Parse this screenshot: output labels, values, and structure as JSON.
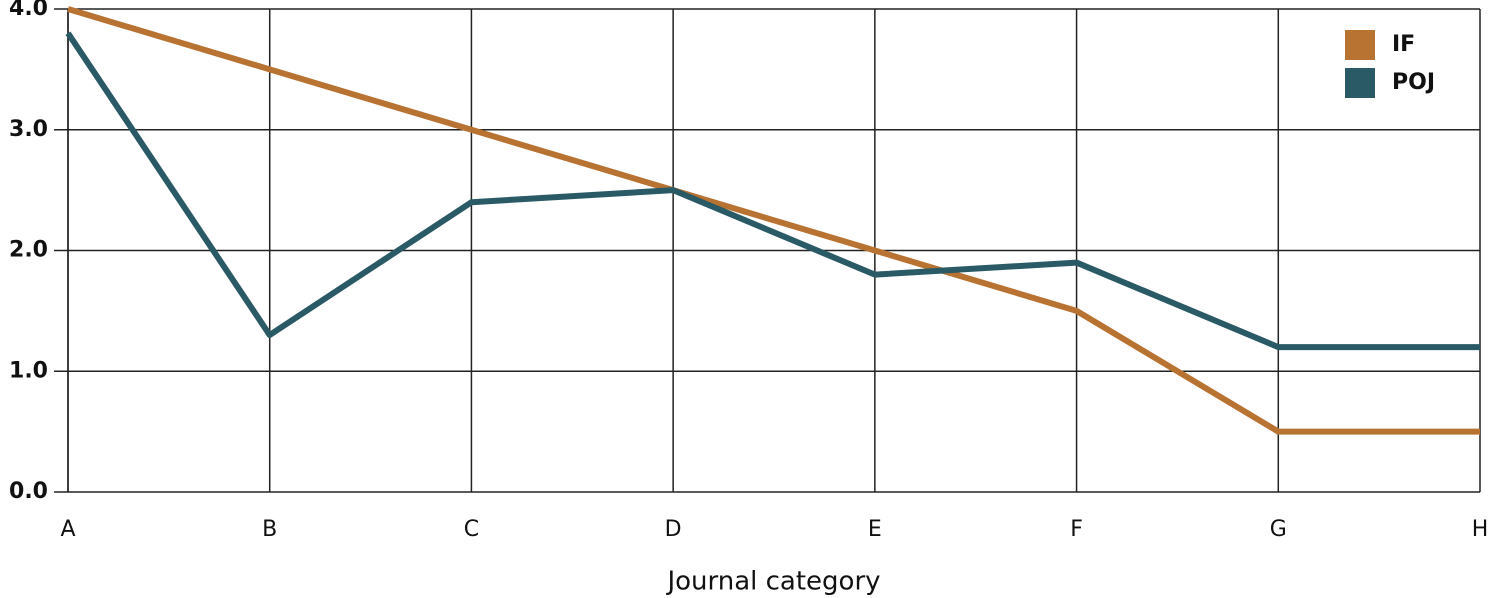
{
  "chart_data": {
    "type": "line",
    "x_label": "Journal category",
    "categories": [
      "A",
      "B",
      "C",
      "D",
      "E",
      "F",
      "G",
      "H"
    ],
    "series": [
      {
        "name": "IF",
        "color": "#b87333",
        "values": [
          4.0,
          3.5,
          3.0,
          2.5,
          2.0,
          1.5,
          0.5,
          0.5
        ]
      },
      {
        "name": "POJ",
        "color": "#2a5a66",
        "values": [
          3.8,
          1.3,
          2.4,
          2.5,
          1.8,
          1.9,
          1.2,
          1.2
        ]
      }
    ],
    "ylim": [
      0,
      4
    ],
    "yticks": [
      {
        "value": 0,
        "label": "0.0"
      },
      {
        "value": 1,
        "label": "1.0"
      },
      {
        "value": 2,
        "label": "2.0"
      },
      {
        "value": 3,
        "label": "3.0"
      },
      {
        "value": 4,
        "label": "4.0"
      }
    ],
    "grid": true,
    "legend": "top-right"
  }
}
